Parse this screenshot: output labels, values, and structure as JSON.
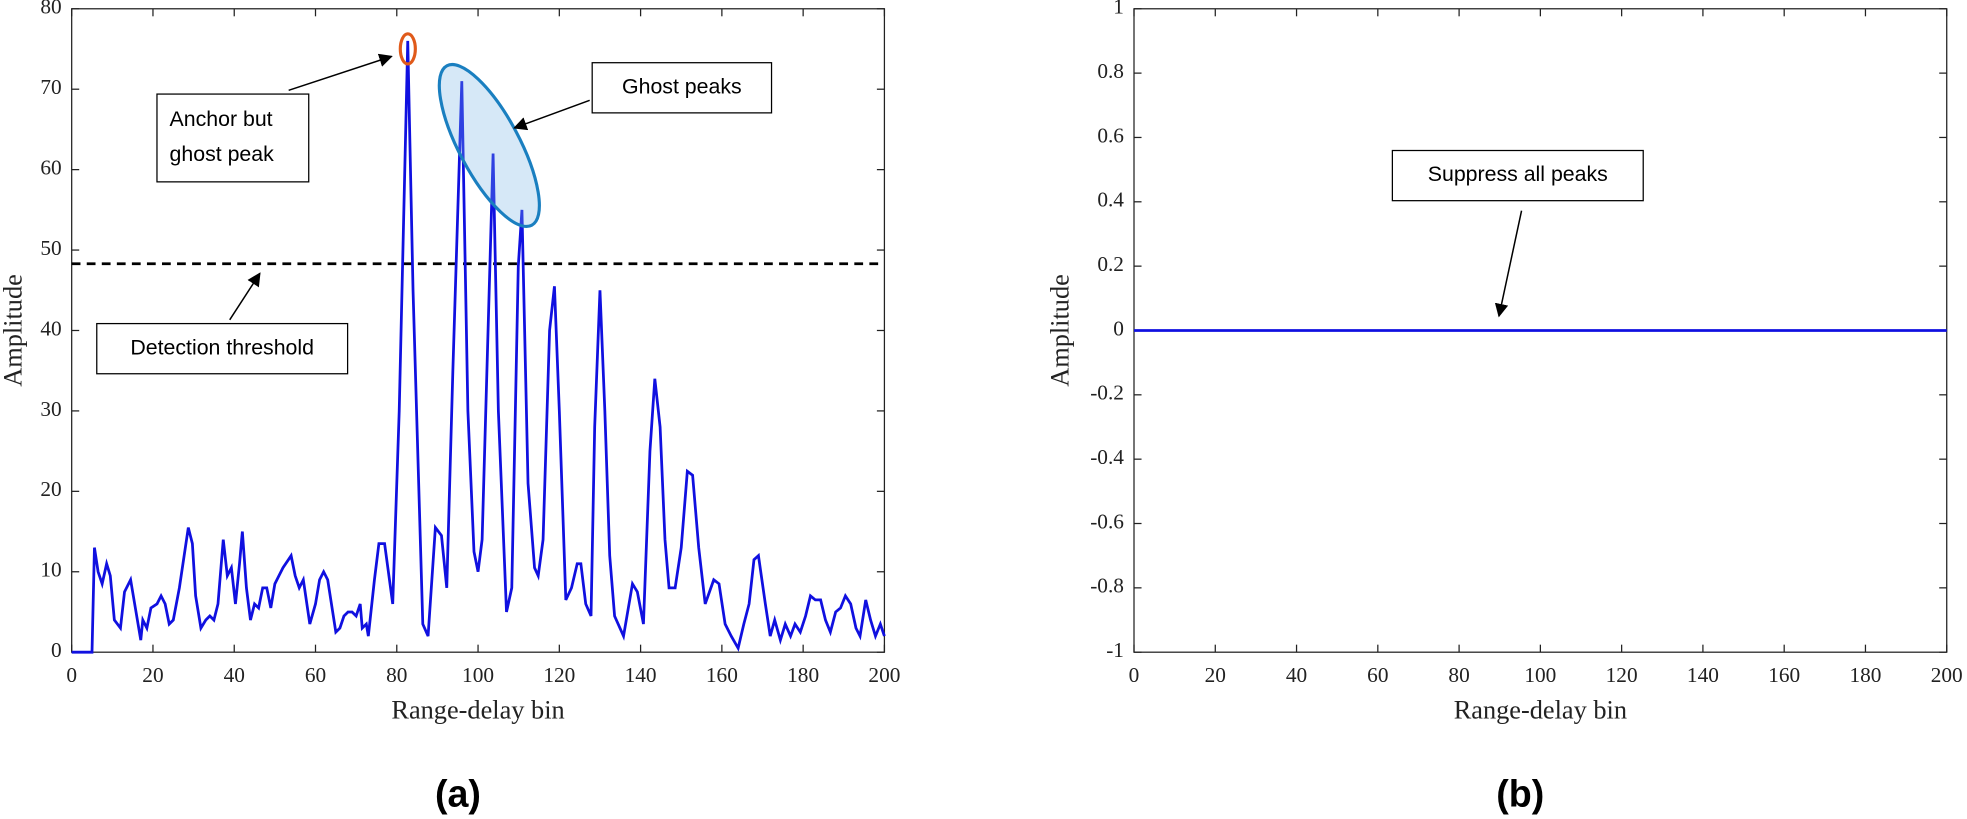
{
  "chart_data": [
    {
      "type": "line",
      "panel_label": "(a)",
      "xlabel": "Range-delay bin",
      "ylabel": "Amplitude",
      "xlim": [
        0,
        200
      ],
      "ylim": [
        0,
        80
      ],
      "xticks": [
        0,
        20,
        40,
        60,
        80,
        100,
        120,
        140,
        160,
        180,
        200
      ],
      "yticks": [
        0,
        10,
        20,
        30,
        40,
        50,
        60,
        70,
        80
      ],
      "threshold": 48.3,
      "x": [
        0,
        5,
        5.6,
        6.5,
        7.5,
        8.6,
        9.5,
        10.5,
        12,
        13,
        14.5,
        15.5,
        17,
        17.5,
        18.5,
        19.5,
        21,
        22,
        23,
        24,
        25,
        26.5,
        28.7,
        29.7,
        30.5,
        31.8,
        33,
        34,
        35,
        36,
        37.3,
        38.3,
        39.3,
        40.3,
        41.3,
        42,
        43,
        44,
        45,
        46,
        47,
        48,
        49,
        50,
        51,
        52,
        54,
        55,
        56,
        57,
        58.6,
        60,
        61,
        62,
        63,
        65,
        66,
        67,
        68,
        69,
        70,
        71,
        71.5,
        72.5,
        73,
        74.5,
        75.6,
        77,
        79,
        80.6,
        82.7,
        84,
        86.4,
        87.7,
        89.5,
        91,
        92.3,
        93.8,
        96,
        97.5,
        99,
        100,
        101,
        103.7,
        105,
        107,
        108.3,
        109.9,
        110.8,
        112.3,
        113.9,
        114.8,
        116,
        117.6,
        118.8,
        120,
        121.6,
        123,
        124.4,
        125.3,
        126.5,
        127.8,
        128.7,
        130,
        131.2,
        132.4,
        133.6,
        135.8,
        138,
        139.2,
        140.7,
        142.3,
        143.5,
        144.8,
        146,
        147,
        148.5,
        150,
        151.5,
        152.8,
        154.3,
        155.9,
        158,
        159.3,
        160.8,
        162.3,
        164,
        165.4,
        166.7,
        167.9,
        169,
        170.7,
        171.9,
        173,
        174.4,
        175.6,
        176.9,
        178,
        179.3,
        180.6,
        181.8,
        183,
        184.3,
        185.5,
        186.7,
        188,
        189.2,
        190.4,
        191.7,
        193,
        194,
        195.4,
        196.6,
        197.8,
        199,
        200
      ],
      "series": [
        {
          "color": "#1010e0",
          "values": [
            0,
            0,
            13,
            10,
            8.5,
            11,
            9.5,
            4,
            3,
            7.5,
            9,
            6,
            1.5,
            4,
            3,
            5.5,
            6,
            7,
            6,
            3.5,
            4,
            8,
            15.5,
            13.5,
            7,
            3,
            4,
            4.5,
            4,
            6,
            14,
            9.5,
            10.5,
            6,
            11,
            15,
            8,
            4,
            6,
            5.5,
            8,
            8,
            5.5,
            8.5,
            9.5,
            10.5,
            12,
            9.5,
            8,
            9,
            3.5,
            6,
            9,
            10,
            9,
            2.5,
            3,
            4.5,
            5,
            5,
            4.5,
            6,
            3,
            3.5,
            2,
            9,
            13.5,
            13.5,
            6,
            30,
            76,
            45,
            3.5,
            2,
            15.5,
            14.5,
            8,
            35,
            71,
            30,
            12.5,
            10,
            14,
            62,
            30,
            5,
            8,
            48,
            55,
            21,
            10.5,
            9.5,
            14,
            40,
            45.5,
            30,
            6.5,
            8,
            11,
            11,
            6,
            4.5,
            28,
            45,
            30,
            12,
            4.5,
            2,
            8.5,
            7.5,
            3.5,
            25,
            34,
            28,
            14,
            8,
            8,
            13,
            22.5,
            22,
            13,
            6,
            9,
            8.5,
            3.5,
            2,
            0.5,
            3.5,
            6,
            11.5,
            12,
            6,
            2,
            4,
            1.5,
            3.5,
            2,
            3.5,
            2.5,
            4.5,
            7,
            6.5,
            6.5,
            4,
            2.5,
            5,
            5.5,
            7,
            6,
            3,
            2,
            6.5,
            4,
            2,
            3.5,
            2
          ]
        }
      ],
      "annotations": [
        {
          "lines": [
            "Anchor but",
            "ghost peak"
          ]
        },
        {
          "lines": [
            "Ghost peaks"
          ]
        },
        {
          "lines": [
            "Detection threshold"
          ]
        }
      ]
    },
    {
      "type": "line",
      "panel_label": "(b)",
      "xlabel": "Range-delay bin",
      "ylabel": "Amplitude",
      "xlim": [
        0,
        200
      ],
      "ylim": [
        -1,
        1
      ],
      "xticks": [
        0,
        20,
        40,
        60,
        80,
        100,
        120,
        140,
        160,
        180,
        200
      ],
      "yticks": [
        -1,
        -0.8,
        -0.6,
        -0.4,
        -0.2,
        0,
        0.2,
        0.4,
        0.6,
        0.8,
        1
      ],
      "x": [
        0,
        200
      ],
      "series": [
        {
          "color": "#1010e0",
          "values": [
            0,
            0
          ]
        }
      ],
      "annotations": [
        {
          "lines": [
            "Suppress all peaks"
          ]
        }
      ]
    }
  ]
}
